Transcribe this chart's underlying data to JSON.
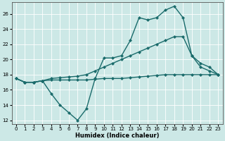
{
  "xlabel": "Humidex (Indice chaleur)",
  "bg_color": "#cce8e6",
  "grid_color": "#ffffff",
  "line_color": "#1a6b6b",
  "xlim": [
    -0.5,
    23.5
  ],
  "ylim": [
    11.5,
    27.5
  ],
  "yticks": [
    12,
    14,
    16,
    18,
    20,
    22,
    24,
    26
  ],
  "xticks": [
    0,
    1,
    2,
    3,
    4,
    5,
    6,
    7,
    8,
    9,
    10,
    11,
    12,
    13,
    14,
    15,
    16,
    17,
    18,
    19,
    20,
    21,
    22,
    23
  ],
  "series1_x": [
    0,
    1,
    2,
    3,
    4,
    5,
    6,
    7,
    8,
    9,
    10,
    11,
    12,
    13,
    14,
    15,
    16,
    17,
    18,
    19,
    20,
    21,
    22,
    23
  ],
  "series1_y": [
    17.5,
    17,
    17,
    17.2,
    17.3,
    17.3,
    17.3,
    17.3,
    17.3,
    17.4,
    17.5,
    17.5,
    17.5,
    17.6,
    17.7,
    17.8,
    17.9,
    18.0,
    18.0,
    18.0,
    18.0,
    18.0,
    18.0,
    18.0
  ],
  "series2_x": [
    0,
    1,
    2,
    3,
    4,
    5,
    6,
    7,
    8,
    9,
    10,
    11,
    12,
    13,
    14,
    15,
    16,
    17,
    18,
    19,
    20,
    21,
    22,
    23
  ],
  "series2_y": [
    17.5,
    17,
    17,
    17.2,
    17.5,
    17.6,
    17.7,
    17.8,
    18.0,
    18.5,
    19.0,
    19.5,
    20.0,
    20.5,
    21.0,
    21.5,
    22.0,
    22.5,
    23.0,
    23.0,
    20.5,
    19.5,
    19.0,
    18.0
  ],
  "series3_x": [
    0,
    1,
    2,
    3,
    4,
    5,
    6,
    7,
    8,
    9,
    10,
    11,
    12,
    13,
    14,
    15,
    16,
    17,
    18,
    19,
    20,
    21,
    22,
    23
  ],
  "series3_y": [
    17.5,
    17,
    17,
    17.2,
    15.5,
    14.0,
    13.0,
    12.0,
    13.5,
    17.5,
    20.2,
    20.2,
    20.5,
    22.5,
    25.5,
    25.2,
    25.5,
    26.5,
    27.0,
    25.5,
    20.5,
    19.0,
    18.5,
    18.0
  ],
  "marker": "D",
  "markersize": 2.5,
  "linewidth": 1.0
}
